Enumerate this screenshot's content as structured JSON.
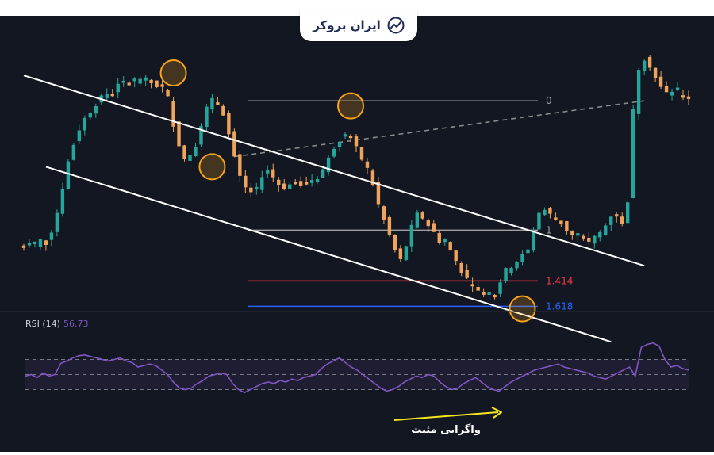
{
  "brand": {
    "name": "ایران بروکر",
    "icon": "trend-up-logo-icon"
  },
  "chart_data": [
    {
      "type": "candlestick",
      "title": "",
      "xlabel": "",
      "ylabel": "",
      "ylim": [
        0,
        100
      ],
      "colors": {
        "up": "#26a69a",
        "down": "#f0a35a",
        "channel": "#ffffff",
        "circle": "#f7a21b"
      },
      "candle_path": [
        22,
        23,
        22,
        24,
        23,
        28,
        35,
        45,
        55,
        62,
        68,
        72,
        75,
        78,
        80,
        82,
        83,
        85,
        86,
        87,
        87,
        88,
        87,
        86,
        85,
        84,
        80,
        70,
        62,
        56,
        58,
        62,
        70,
        76,
        79,
        78,
        74,
        66,
        57,
        49,
        45,
        43,
        44,
        50,
        52,
        49,
        46,
        45,
        46,
        47,
        46,
        47,
        48,
        49,
        52,
        56,
        61,
        64,
        66,
        64,
        60,
        56,
        52,
        46,
        38,
        32,
        26,
        20,
        16,
        22,
        29,
        34,
        33,
        30,
        27,
        24,
        23,
        20,
        16,
        12,
        8,
        5,
        4,
        3,
        2,
        4,
        8,
        12,
        14,
        16,
        18,
        20,
        28,
        35,
        36,
        34,
        32,
        31,
        28,
        26,
        25,
        24,
        23,
        25,
        27,
        30,
        34,
        34,
        30,
        40,
        75,
        92,
        96,
        93,
        88,
        84,
        82,
        83,
        82,
        81,
        81
      ],
      "channel_lines": [
        {
          "label": "upper-channel",
          "from": [
            0,
            89
          ],
          "to": [
            112,
            14
          ]
        },
        {
          "label": "lower-channel",
          "from": [
            4,
            53
          ],
          "to": [
            106,
            -16
          ]
        }
      ],
      "dashed_line": {
        "from": [
          38,
          57
        ],
        "to": [
          112,
          79
        ]
      },
      "fibonacci_levels": [
        {
          "label": "0",
          "value": 79,
          "color": "#9e9e9e"
        },
        {
          "label": "1",
          "value": 28,
          "color": "#9e9e9e"
        },
        {
          "label": "1.414",
          "value": 8,
          "color": "#f23645"
        },
        {
          "label": "1.618",
          "value": -2,
          "color": "#2962ff"
        }
      ],
      "highlight_points": [
        {
          "index": 27,
          "value": 90
        },
        {
          "index": 34,
          "value": 53
        },
        {
          "index": 59,
          "value": 77
        },
        {
          "index": 90,
          "value": -3
        }
      ]
    },
    {
      "type": "line",
      "title": "RSI (14)",
      "current_value": "56.73",
      "ylim": [
        0,
        100
      ],
      "bands": [
        70,
        50,
        30
      ],
      "color": "#7e57c2",
      "values": [
        48,
        50,
        46,
        52,
        48,
        50,
        65,
        68,
        72,
        75,
        76,
        74,
        72,
        70,
        68,
        70,
        72,
        68,
        66,
        60,
        62,
        64,
        62,
        56,
        50,
        40,
        32,
        30,
        32,
        38,
        42,
        48,
        50,
        52,
        50,
        38,
        30,
        26,
        30,
        34,
        38,
        40,
        38,
        42,
        40,
        44,
        42,
        46,
        48,
        50,
        58,
        64,
        68,
        72,
        66,
        60,
        56,
        50,
        44,
        38,
        32,
        28,
        30,
        34,
        40,
        44,
        48,
        46,
        50,
        48,
        40,
        34,
        30,
        32,
        38,
        42,
        46,
        40,
        34,
        30,
        28,
        34,
        40,
        44,
        48,
        52,
        56,
        58,
        60,
        62,
        64,
        60,
        58,
        56,
        54,
        52,
        48,
        46,
        44,
        48,
        52,
        56,
        60,
        48,
        86,
        90,
        92,
        88,
        70,
        60,
        62,
        58,
        56
      ],
      "divergence_label": "واگرایی مثبت",
      "divergence_arrow_color": "#f5e71c"
    }
  ]
}
